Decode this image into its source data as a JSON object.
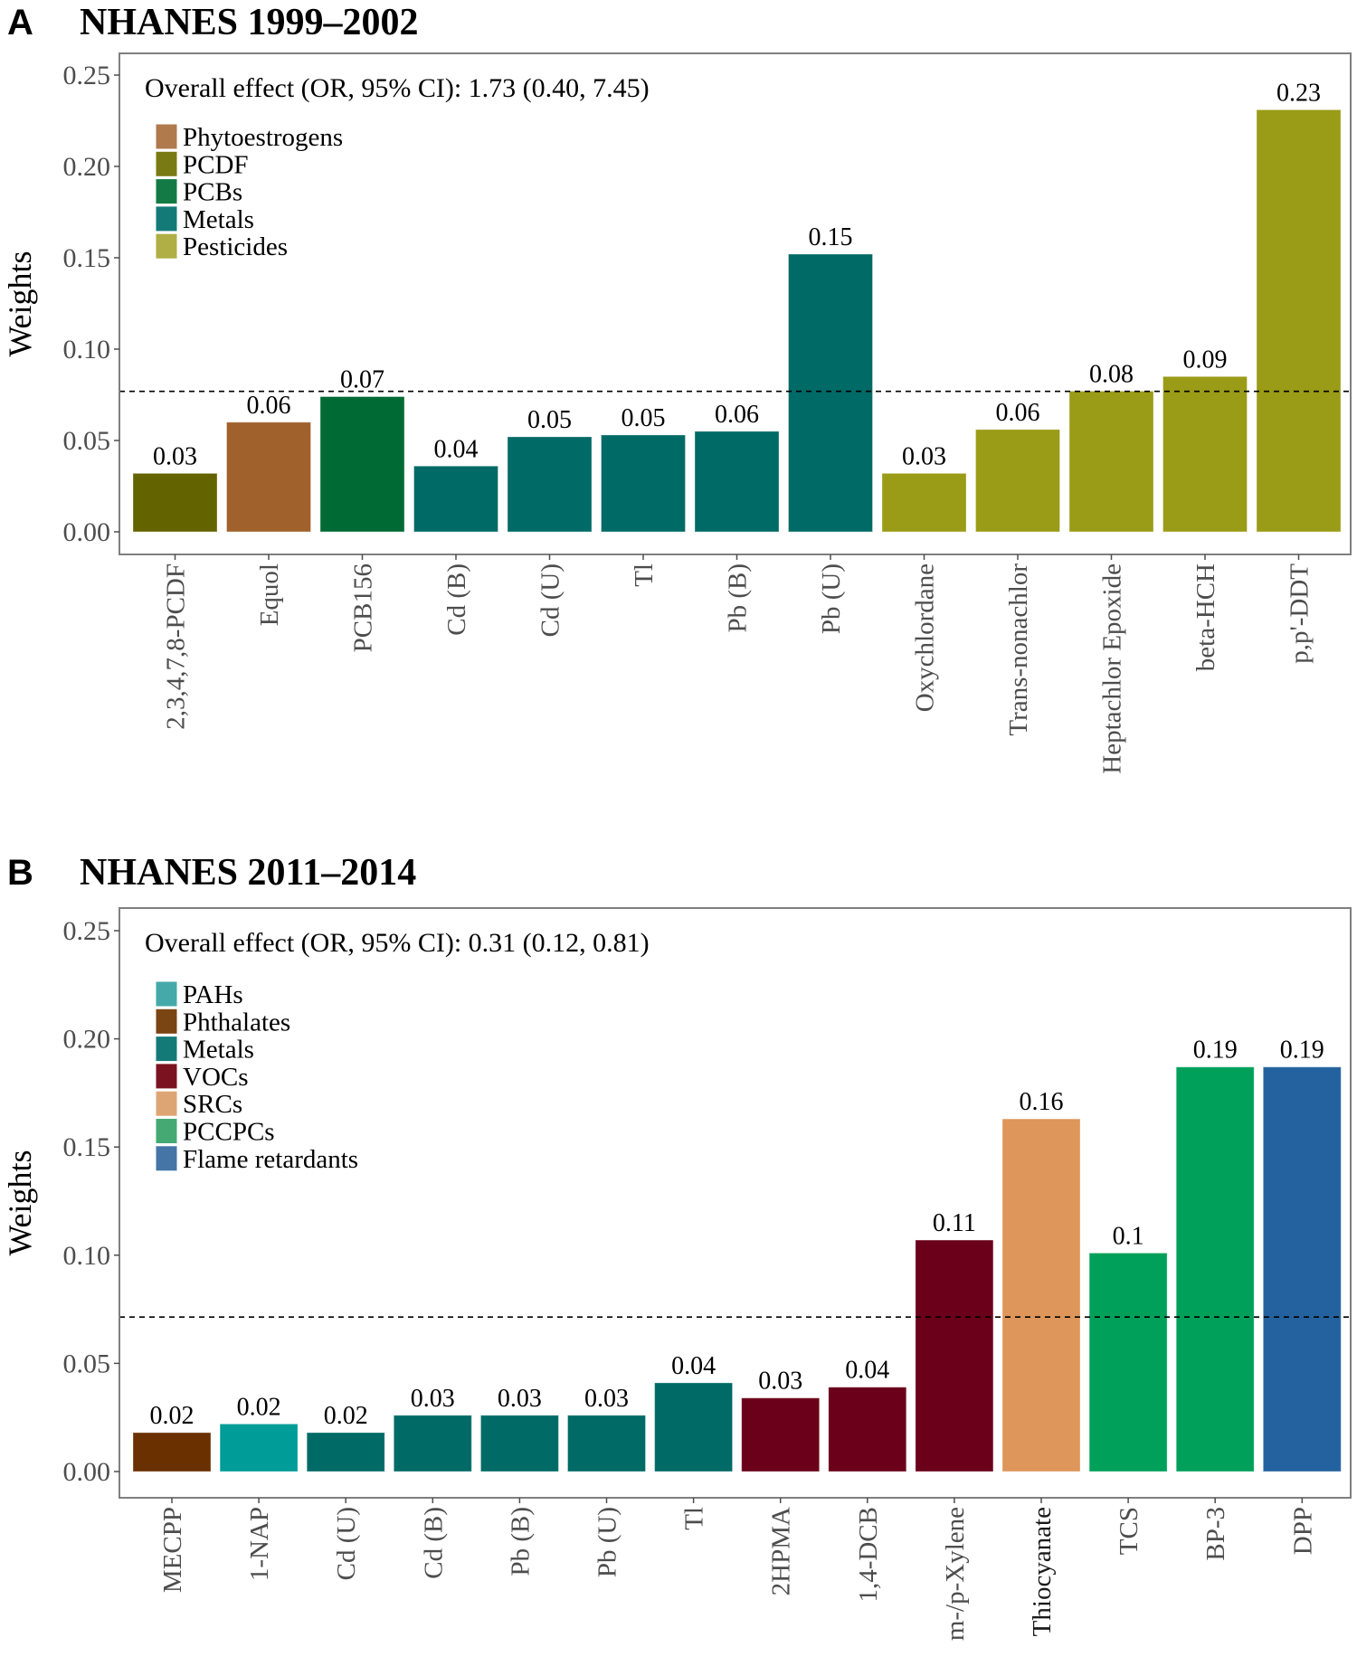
{
  "chart_data": [
    {
      "panel_letter": "A",
      "title": "NHANES 1999–2002",
      "type": "bar",
      "ylabel": "Weights",
      "xlabel": "",
      "ylim": [
        0,
        0.25
      ],
      "yticks": [
        "0.00",
        "0.05",
        "0.10",
        "0.15",
        "0.20",
        "0.25"
      ],
      "ytick_values": [
        0,
        0.05,
        0.1,
        0.15,
        0.2,
        0.25
      ],
      "reference_line": 0.0769,
      "annotation": "Overall effect (OR, 95% CI): 1.73 (0.40, 7.45)",
      "legend_position": "top-left",
      "legend": [
        {
          "name": "Phytoestrogens",
          "color": "#B07A4C"
        },
        {
          "name": "PCDF",
          "color": "#7A7A14"
        },
        {
          "name": "PCBs",
          "color": "#137A45"
        },
        {
          "name": "Metals",
          "color": "#147A78"
        },
        {
          "name": "Pesticides",
          "color": "#AFAF45"
        }
      ],
      "categories": [
        "2,3,4,7,8-PCDF",
        "Equol",
        "PCB156",
        "Cd (B)",
        "Cd (U)",
        "Tl",
        "Pb (B)",
        "Pb (U)",
        "Oxychlordane",
        "Trans-nonachlor",
        "Heptachlor Epoxide",
        "beta-HCH",
        "p,p'-DDT"
      ],
      "values": [
        0.032,
        0.06,
        0.074,
        0.036,
        0.052,
        0.053,
        0.055,
        0.152,
        0.032,
        0.056,
        0.077,
        0.085,
        0.231
      ],
      "value_labels": [
        "0.03",
        "0.06",
        "0.07",
        "0.04",
        "0.05",
        "0.05",
        "0.06",
        "0.15",
        "0.03",
        "0.06",
        "0.08",
        "0.09",
        "0.23"
      ],
      "groups": [
        "PCDF",
        "Phytoestrogens",
        "PCBs",
        "Metals",
        "Metals",
        "Metals",
        "Metals",
        "Metals",
        "Pesticides",
        "Pesticides",
        "Pesticides",
        "Pesticides",
        "Pesticides"
      ],
      "bar_colors": {
        "Phytoestrogens": "#A0612C",
        "PCDF": "#636300",
        "PCBs": "#006A35",
        "Metals": "#006A66",
        "Pesticides": "#9A9B17"
      },
      "grid": false
    },
    {
      "panel_letter": "B",
      "title": "NHANES 2011–2014",
      "type": "bar",
      "ylabel": "Weights",
      "xlabel": "",
      "ylim": [
        0,
        0.25
      ],
      "yticks": [
        "0.00",
        "0.05",
        "0.10",
        "0.15",
        "0.20",
        "0.25"
      ],
      "ytick_values": [
        0,
        0.05,
        0.1,
        0.15,
        0.2,
        0.25
      ],
      "reference_line": 0.0714,
      "annotation": "Overall effect (OR, 95% CI): 0.31 (0.12, 0.81)",
      "legend_position": "top-left",
      "legend": [
        {
          "name": "PAHs",
          "color": "#45A9A9"
        },
        {
          "name": "Phthalates",
          "color": "#7A4413"
        },
        {
          "name": "Metals",
          "color": "#147A78"
        },
        {
          "name": "VOCs",
          "color": "#7A1220"
        },
        {
          "name": "SRCs",
          "color": "#DDA574"
        },
        {
          "name": "PCCPCs",
          "color": "#45A974"
        },
        {
          "name": "Flame retardants",
          "color": "#4575A6"
        }
      ],
      "categories": [
        "MECPP",
        "1-NAP",
        "Cd (U)",
        "Cd (B)",
        "Pb (B)",
        "Pb (U)",
        "Tl",
        "2HPMA",
        "1,4-DCB",
        "m-/p-Xylene",
        "Thiocyanate",
        "TCS",
        "BP-3",
        "DPP"
      ],
      "values": [
        0.018,
        0.022,
        0.018,
        0.026,
        0.026,
        0.026,
        0.041,
        0.034,
        0.039,
        0.107,
        0.163,
        0.101,
        0.187,
        0.187
      ],
      "value_labels": [
        "0.02",
        "0.02",
        "0.02",
        "0.03",
        "0.03",
        "0.03",
        "0.04",
        "0.03",
        "0.04",
        "0.11",
        "0.16",
        "0.1",
        "0.19",
        "0.19"
      ],
      "groups": [
        "Phthalates",
        "PAHs",
        "Metals",
        "Metals",
        "Metals",
        "Metals",
        "Metals",
        "VOCs",
        "VOCs",
        "VOCs",
        "SRCs",
        "PCCPCs",
        "PCCPCs",
        "Flame retardants"
      ],
      "bar_colors": {
        "PAHs": "#009C98",
        "Phthalates": "#6A3000",
        "Metals": "#006A66",
        "VOCs": "#6A0019",
        "SRCs": "#DE965A",
        "PCCPCs": "#00A05A",
        "Flame retardants": "#23629E"
      },
      "grid": false
    }
  ]
}
